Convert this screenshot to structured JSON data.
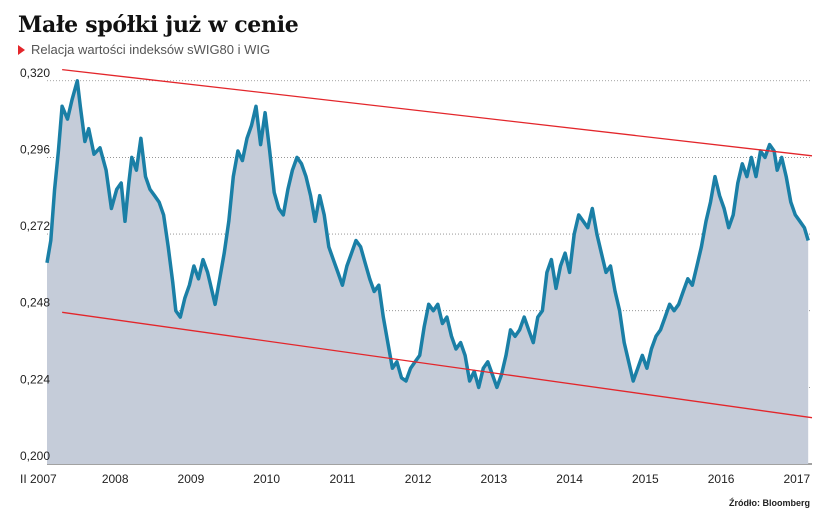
{
  "header": {
    "title": "Małe spółki już w cenie",
    "subtitle": "Relacja wartości indeksów sWIG80 i WIG"
  },
  "source": "Źródło: Bloomberg",
  "colors": {
    "line": "#1a7fa6",
    "area": "#c5ccd9",
    "trend": "#e3262b",
    "accent": "#e3262b"
  },
  "chart_data": {
    "type": "area",
    "title": "Małe spółki już w cenie",
    "subtitle": "Relacja wartości indeksów sWIG80 i WIG",
    "ylim": [
      0.2,
      0.324
    ],
    "xlim": [
      2007.0,
      2017.1
    ],
    "y_ticks": [
      "0,320",
      "0,296",
      "0,272",
      "0,248",
      "0,224",
      "0,200"
    ],
    "x_ticks": [
      {
        "label": "II 2007",
        "x": 2007.0
      },
      {
        "label": "2008",
        "x": 2007.9
      },
      {
        "label": "2009",
        "x": 2008.9
      },
      {
        "label": "2010",
        "x": 2009.9
      },
      {
        "label": "2011",
        "x": 2010.9
      },
      {
        "label": "2012",
        "x": 2011.9
      },
      {
        "label": "2013",
        "x": 2012.9
      },
      {
        "label": "2014",
        "x": 2013.9
      },
      {
        "label": "2015",
        "x": 2014.9
      },
      {
        "label": "2016",
        "x": 2015.9
      },
      {
        "label": "2017",
        "x": 2016.9
      }
    ],
    "grid": "horizontal dotted",
    "series": [
      {
        "points": [
          [
            2007.0,
            0.263
          ],
          [
            2007.05,
            0.27
          ],
          [
            2007.1,
            0.286
          ],
          [
            2007.15,
            0.298
          ],
          [
            2007.2,
            0.312
          ],
          [
            2007.27,
            0.308
          ],
          [
            2007.33,
            0.314
          ],
          [
            2007.4,
            0.32
          ],
          [
            2007.44,
            0.312
          ],
          [
            2007.5,
            0.301
          ],
          [
            2007.55,
            0.305
          ],
          [
            2007.62,
            0.297
          ],
          [
            2007.7,
            0.299
          ],
          [
            2007.78,
            0.292
          ],
          [
            2007.85,
            0.28
          ],
          [
            2007.92,
            0.286
          ],
          [
            2007.98,
            0.288
          ],
          [
            2008.03,
            0.276
          ],
          [
            2008.08,
            0.288
          ],
          [
            2008.12,
            0.296
          ],
          [
            2008.18,
            0.292
          ],
          [
            2008.24,
            0.302
          ],
          [
            2008.3,
            0.29
          ],
          [
            2008.36,
            0.286
          ],
          [
            2008.42,
            0.284
          ],
          [
            2008.48,
            0.282
          ],
          [
            2008.54,
            0.278
          ],
          [
            2008.6,
            0.268
          ],
          [
            2008.66,
            0.257
          ],
          [
            2008.7,
            0.248
          ],
          [
            2008.76,
            0.246
          ],
          [
            2008.82,
            0.252
          ],
          [
            2008.88,
            0.256
          ],
          [
            2008.94,
            0.262
          ],
          [
            2009.0,
            0.258
          ],
          [
            2009.06,
            0.264
          ],
          [
            2009.12,
            0.26
          ],
          [
            2009.18,
            0.254
          ],
          [
            2009.22,
            0.25
          ],
          [
            2009.28,
            0.258
          ],
          [
            2009.34,
            0.266
          ],
          [
            2009.4,
            0.276
          ],
          [
            2009.46,
            0.29
          ],
          [
            2009.52,
            0.298
          ],
          [
            2009.58,
            0.295
          ],
          [
            2009.64,
            0.302
          ],
          [
            2009.7,
            0.306
          ],
          [
            2009.76,
            0.312
          ],
          [
            2009.82,
            0.3
          ],
          [
            2009.88,
            0.31
          ],
          [
            2009.94,
            0.298
          ],
          [
            2010.0,
            0.285
          ],
          [
            2010.06,
            0.28
          ],
          [
            2010.12,
            0.278
          ],
          [
            2010.18,
            0.286
          ],
          [
            2010.24,
            0.292
          ],
          [
            2010.3,
            0.296
          ],
          [
            2010.36,
            0.294
          ],
          [
            2010.42,
            0.29
          ],
          [
            2010.48,
            0.284
          ],
          [
            2010.54,
            0.276
          ],
          [
            2010.6,
            0.284
          ],
          [
            2010.66,
            0.278
          ],
          [
            2010.72,
            0.268
          ],
          [
            2010.78,
            0.264
          ],
          [
            2010.84,
            0.26
          ],
          [
            2010.9,
            0.256
          ],
          [
            2010.96,
            0.262
          ],
          [
            2011.02,
            0.266
          ],
          [
            2011.08,
            0.27
          ],
          [
            2011.14,
            0.268
          ],
          [
            2011.2,
            0.263
          ],
          [
            2011.26,
            0.258
          ],
          [
            2011.32,
            0.254
          ],
          [
            2011.38,
            0.256
          ],
          [
            2011.44,
            0.246
          ],
          [
            2011.5,
            0.238
          ],
          [
            2011.56,
            0.23
          ],
          [
            2011.62,
            0.232
          ],
          [
            2011.68,
            0.227
          ],
          [
            2011.74,
            0.226
          ],
          [
            2011.8,
            0.23
          ],
          [
            2011.86,
            0.232
          ],
          [
            2011.92,
            0.234
          ],
          [
            2011.98,
            0.243
          ],
          [
            2012.04,
            0.25
          ],
          [
            2012.1,
            0.248
          ],
          [
            2012.16,
            0.25
          ],
          [
            2012.22,
            0.244
          ],
          [
            2012.28,
            0.246
          ],
          [
            2012.34,
            0.24
          ],
          [
            2012.4,
            0.236
          ],
          [
            2012.46,
            0.238
          ],
          [
            2012.52,
            0.234
          ],
          [
            2012.58,
            0.226
          ],
          [
            2012.64,
            0.229
          ],
          [
            2012.7,
            0.224
          ],
          [
            2012.76,
            0.23
          ],
          [
            2012.82,
            0.232
          ],
          [
            2012.88,
            0.228
          ],
          [
            2012.94,
            0.224
          ],
          [
            2013.0,
            0.228
          ],
          [
            2013.06,
            0.234
          ],
          [
            2013.12,
            0.242
          ],
          [
            2013.18,
            0.24
          ],
          [
            2013.24,
            0.242
          ],
          [
            2013.3,
            0.246
          ],
          [
            2013.36,
            0.242
          ],
          [
            2013.42,
            0.238
          ],
          [
            2013.48,
            0.246
          ],
          [
            2013.54,
            0.248
          ],
          [
            2013.6,
            0.26
          ],
          [
            2013.66,
            0.264
          ],
          [
            2013.72,
            0.255
          ],
          [
            2013.78,
            0.262
          ],
          [
            2013.84,
            0.266
          ],
          [
            2013.9,
            0.26
          ],
          [
            2013.96,
            0.272
          ],
          [
            2014.02,
            0.278
          ],
          [
            2014.08,
            0.276
          ],
          [
            2014.14,
            0.274
          ],
          [
            2014.2,
            0.28
          ],
          [
            2014.26,
            0.272
          ],
          [
            2014.32,
            0.266
          ],
          [
            2014.38,
            0.26
          ],
          [
            2014.44,
            0.262
          ],
          [
            2014.5,
            0.254
          ],
          [
            2014.56,
            0.248
          ],
          [
            2014.62,
            0.238
          ],
          [
            2014.68,
            0.232
          ],
          [
            2014.74,
            0.226
          ],
          [
            2014.8,
            0.23
          ],
          [
            2014.86,
            0.234
          ],
          [
            2014.92,
            0.23
          ],
          [
            2014.98,
            0.236
          ],
          [
            2015.04,
            0.24
          ],
          [
            2015.1,
            0.242
          ],
          [
            2015.16,
            0.246
          ],
          [
            2015.22,
            0.25
          ],
          [
            2015.28,
            0.248
          ],
          [
            2015.34,
            0.25
          ],
          [
            2015.4,
            0.254
          ],
          [
            2015.46,
            0.258
          ],
          [
            2015.52,
            0.256
          ],
          [
            2015.58,
            0.262
          ],
          [
            2015.64,
            0.268
          ],
          [
            2015.7,
            0.276
          ],
          [
            2015.76,
            0.282
          ],
          [
            2015.82,
            0.29
          ],
          [
            2015.88,
            0.284
          ],
          [
            2015.94,
            0.28
          ],
          [
            2016.0,
            0.274
          ],
          [
            2016.06,
            0.278
          ],
          [
            2016.12,
            0.288
          ],
          [
            2016.18,
            0.294
          ],
          [
            2016.24,
            0.29
          ],
          [
            2016.3,
            0.296
          ],
          [
            2016.36,
            0.29
          ],
          [
            2016.42,
            0.298
          ],
          [
            2016.48,
            0.296
          ],
          [
            2016.54,
            0.3
          ],
          [
            2016.6,
            0.298
          ],
          [
            2016.64,
            0.292
          ],
          [
            2016.7,
            0.296
          ],
          [
            2016.76,
            0.29
          ],
          [
            2016.82,
            0.282
          ],
          [
            2016.88,
            0.278
          ],
          [
            2016.94,
            0.276
          ],
          [
            2017.0,
            0.274
          ],
          [
            2017.05,
            0.27
          ]
        ]
      }
    ],
    "trendlines": [
      {
        "from": [
          2007.2,
          0.3235
        ],
        "to": [
          2017.1,
          0.2965
        ]
      },
      {
        "from": [
          2007.2,
          0.2475
        ],
        "to": [
          2017.1,
          0.2145
        ]
      }
    ]
  }
}
